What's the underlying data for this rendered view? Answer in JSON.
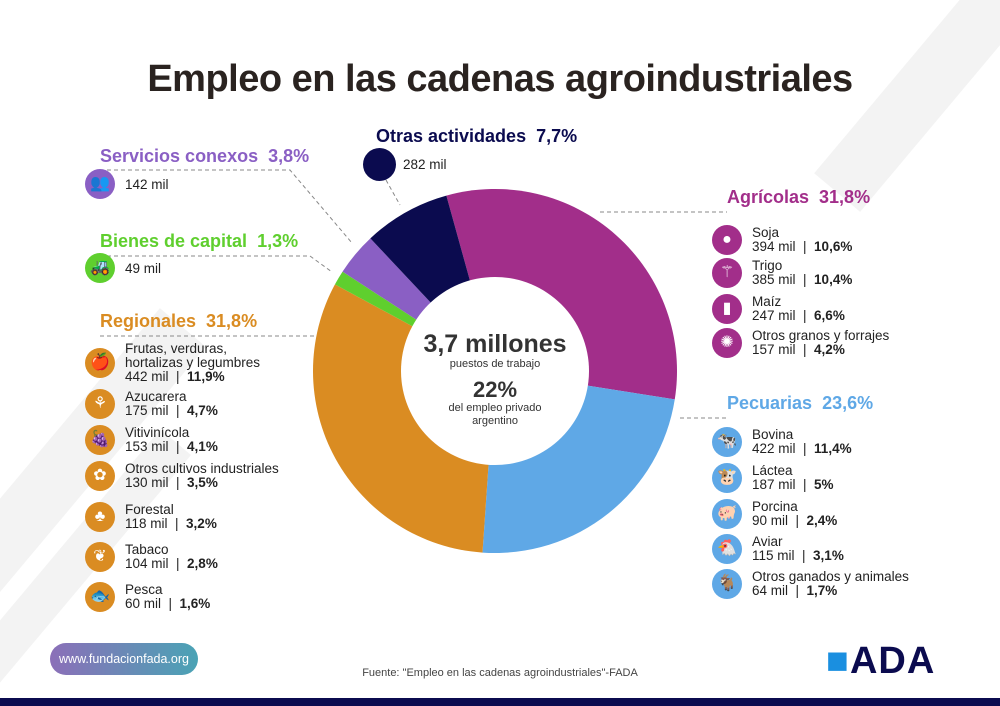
{
  "title": "Empleo en las cadenas agroindustriales",
  "center": {
    "total": "3,7 millones",
    "total_label": "puestos de trabajo",
    "share": "22%",
    "share_label_1": "del empleo privado",
    "share_label_2": "argentino"
  },
  "colors": {
    "agricolas": "#a22e8a",
    "pecuarias": "#5fa8e6",
    "regionales": "#da8c22",
    "bienes": "#5fcf2e",
    "servicios": "#8a5fc4",
    "otras": "#0b0b4f"
  },
  "chart_data": {
    "type": "pie",
    "donut": true,
    "order": "clockwise",
    "categories": [
      "Agrícolas",
      "Pecuarias",
      "Regionales",
      "Bienes de capital",
      "Servicios conexos",
      "Otras actividades"
    ],
    "values": [
      31.8,
      23.6,
      31.8,
      1.3,
      3.8,
      7.7
    ],
    "unit": "%"
  },
  "groups": {
    "otras": {
      "name": "Otras actividades",
      "pct": "7,7%",
      "value": "282 mil"
    },
    "servicios": {
      "name": "Servicios conexos",
      "pct": "3,8%",
      "value": "142 mil",
      "icon": "people-icon"
    },
    "bienes": {
      "name": "Bienes de capital",
      "pct": "1,3%",
      "value": "49 mil",
      "icon": "tractor-icon"
    },
    "regionales": {
      "name": "Regionales",
      "pct": "31,8%",
      "items": [
        {
          "name": "Frutas, verduras,",
          "name2": "hortalizas  y legumbres",
          "value": "442 mil",
          "pct": "11,9%",
          "icon": "fruit-icon"
        },
        {
          "name": "Azucarera",
          "value": "175 mil",
          "pct": "4,7%",
          "icon": "sugarcane-icon"
        },
        {
          "name": "Vitivinícola",
          "value": "153 mil",
          "pct": "4,1%",
          "icon": "grapes-icon"
        },
        {
          "name": "Otros cultivos industriales",
          "value": "130 mil",
          "pct": "3,5%",
          "icon": "cotton-icon"
        },
        {
          "name": "Forestal",
          "value": "118 mil",
          "pct": "3,2%",
          "icon": "trees-icon"
        },
        {
          "name": "Tabaco",
          "value": "104 mil",
          "pct": "2,8%",
          "icon": "tobacco-leaf-icon"
        },
        {
          "name": "Pesca",
          "value": "60 mil",
          "pct": "1,6%",
          "icon": "fish-icon"
        }
      ]
    },
    "agricolas": {
      "name": "Agrícolas",
      "pct": "31,8%",
      "items": [
        {
          "name": "Soja",
          "value": "394 mil",
          "pct": "10,6%",
          "icon": "soybean-icon"
        },
        {
          "name": "Trigo",
          "value": "385 mil",
          "pct": "10,4%",
          "icon": "wheat-icon"
        },
        {
          "name": "Maíz",
          "value": "247 mil",
          "pct": "6,6%",
          "icon": "corn-icon"
        },
        {
          "name": "Otros granos y forrajes",
          "value": "157 mil",
          "pct": "4,2%",
          "icon": "sunflower-icon"
        }
      ]
    },
    "pecuarias": {
      "name": "Pecuarias",
      "pct": "23,6%",
      "items": [
        {
          "name": "Bovina",
          "value": "422 mil",
          "pct": "11,4%",
          "icon": "cow-icon"
        },
        {
          "name": "Láctea",
          "value": "187 mil",
          "pct": "5%",
          "icon": "dairy-cow-icon"
        },
        {
          "name": "Porcina",
          "value": "90 mil",
          "pct": "2,4%",
          "icon": "pig-icon"
        },
        {
          "name": "Aviar",
          "value": "115 mil",
          "pct": "3,1%",
          "icon": "chicken-icon"
        },
        {
          "name": "Otros ganados y animales",
          "value": "64 mil",
          "pct": "1,7%",
          "icon": "goat-icon"
        }
      ]
    }
  },
  "footer": {
    "url": "www.fundacionfada.org",
    "source": "Fuente: \"Empleo en las cadenas agroindustriales\"-FADA",
    "logo": "FADA"
  }
}
